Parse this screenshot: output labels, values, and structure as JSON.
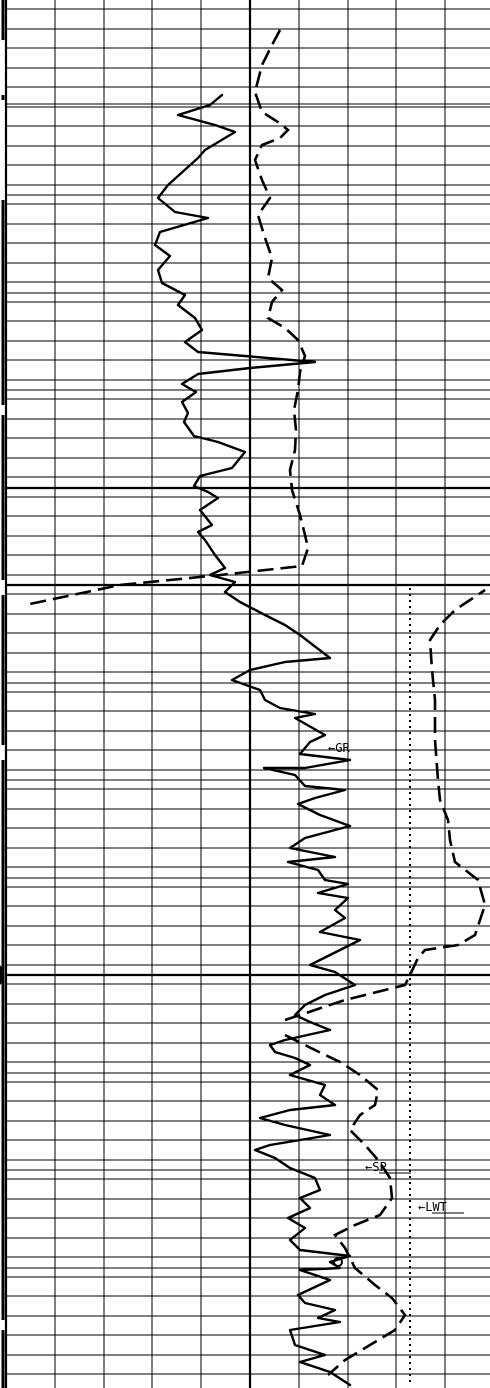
{
  "colors": {
    "background": "#ffffff",
    "ink": "#000000"
  },
  "labels": {
    "gr": "←GR",
    "sp": "←SP",
    "lwt": "←LWT"
  },
  "chart_data": {
    "type": "line",
    "title": "",
    "xlabel": "",
    "ylabel": "",
    "grid": true,
    "legend": "none",
    "depth_range": [
      0,
      1388
    ],
    "track_range": [
      0,
      10
    ],
    "series": [
      {
        "key": "gr",
        "style": "solid",
        "points": [
          [
            222,
            95
          ],
          [
            210,
            105
          ],
          [
            178,
            115
          ],
          [
            215,
            125
          ],
          [
            235,
            132
          ],
          [
            205,
            150
          ],
          [
            198,
            158
          ],
          [
            168,
            185
          ],
          [
            158,
            198
          ],
          [
            175,
            212
          ],
          [
            208,
            218
          ],
          [
            160,
            232
          ],
          [
            155,
            245
          ],
          [
            170,
            256
          ],
          [
            158,
            270
          ],
          [
            162,
            283
          ],
          [
            185,
            295
          ],
          [
            178,
            305
          ],
          [
            195,
            318
          ],
          [
            202,
            330
          ],
          [
            185,
            342
          ],
          [
            198,
            352
          ],
          [
            315,
            362
          ],
          [
            250,
            368
          ],
          [
            198,
            374
          ],
          [
            182,
            384
          ],
          [
            196,
            392
          ],
          [
            182,
            402
          ],
          [
            188,
            413
          ],
          [
            184,
            422
          ],
          [
            194,
            436
          ],
          [
            218,
            442
          ],
          [
            245,
            452
          ],
          [
            232,
            468
          ],
          [
            200,
            476
          ],
          [
            194,
            486
          ],
          [
            208,
            492
          ],
          [
            218,
            498
          ],
          [
            200,
            510
          ],
          [
            212,
            525
          ],
          [
            198,
            532
          ],
          [
            205,
            540
          ],
          [
            215,
            555
          ],
          [
            225,
            568
          ],
          [
            210,
            575
          ],
          [
            235,
            582
          ],
          [
            225,
            592
          ],
          [
            240,
            602
          ],
          [
            265,
            615
          ],
          [
            285,
            625
          ],
          [
            300,
            635
          ],
          [
            330,
            658
          ],
          [
            285,
            662
          ],
          [
            250,
            670
          ],
          [
            232,
            680
          ],
          [
            260,
            690
          ],
          [
            265,
            700
          ],
          [
            280,
            708
          ],
          [
            315,
            714
          ],
          [
            295,
            718
          ],
          [
            325,
            735
          ],
          [
            310,
            742
          ],
          [
            300,
            754
          ],
          [
            350,
            760
          ],
          [
            305,
            768
          ],
          [
            264,
            768
          ],
          [
            295,
            775
          ],
          [
            305,
            786
          ],
          [
            345,
            790
          ],
          [
            315,
            798
          ],
          [
            298,
            804
          ],
          [
            320,
            815
          ],
          [
            350,
            826
          ],
          [
            305,
            838
          ],
          [
            290,
            848
          ],
          [
            335,
            857
          ],
          [
            288,
            862
          ],
          [
            318,
            870
          ],
          [
            325,
            880
          ],
          [
            348,
            884
          ],
          [
            318,
            893
          ],
          [
            348,
            898
          ],
          [
            335,
            910
          ],
          [
            345,
            918
          ],
          [
            320,
            932
          ],
          [
            360,
            940
          ],
          [
            330,
            955
          ],
          [
            310,
            965
          ],
          [
            335,
            972
          ],
          [
            355,
            985
          ],
          [
            325,
            995
          ],
          [
            305,
            1005
          ],
          [
            295,
            1015
          ],
          [
            310,
            1022
          ],
          [
            330,
            1030
          ],
          [
            285,
            1040
          ],
          [
            270,
            1045
          ],
          [
            275,
            1052
          ],
          [
            295,
            1058
          ],
          [
            310,
            1065
          ],
          [
            290,
            1075
          ],
          [
            325,
            1085
          ],
          [
            320,
            1095
          ],
          [
            335,
            1105
          ],
          [
            290,
            1110
          ],
          [
            260,
            1118
          ],
          [
            285,
            1125
          ],
          [
            330,
            1135
          ],
          [
            270,
            1145
          ],
          [
            255,
            1150
          ],
          [
            275,
            1158
          ],
          [
            290,
            1168
          ],
          [
            315,
            1178
          ],
          [
            320,
            1190
          ],
          [
            300,
            1198
          ],
          [
            310,
            1208
          ],
          [
            288,
            1218
          ],
          [
            305,
            1228
          ],
          [
            290,
            1240
          ],
          [
            300,
            1250
          ],
          [
            350,
            1256
          ],
          [
            330,
            1262
          ],
          [
            340,
            1268
          ],
          [
            300,
            1270
          ],
          [
            330,
            1280
          ],
          [
            298,
            1295
          ],
          [
            305,
            1303
          ],
          [
            335,
            1310
          ],
          [
            318,
            1318
          ],
          [
            340,
            1322
          ],
          [
            290,
            1330
          ],
          [
            295,
            1345
          ],
          [
            325,
            1355
          ],
          [
            300,
            1362
          ],
          [
            330,
            1372
          ],
          [
            350,
            1385
          ]
        ]
      },
      {
        "key": "sp",
        "style": "dashed",
        "points": [
          [
            280,
            30
          ],
          [
            272,
            45
          ],
          [
            262,
            65
          ],
          [
            255,
            92
          ],
          [
            262,
            112
          ],
          [
            278,
            122
          ],
          [
            288,
            130
          ],
          [
            280,
            138
          ],
          [
            262,
            145
          ],
          [
            255,
            160
          ],
          [
            262,
            180
          ],
          [
            270,
            198
          ],
          [
            258,
            215
          ],
          [
            264,
            235
          ],
          [
            272,
            258
          ],
          [
            268,
            278
          ],
          [
            282,
            290
          ],
          [
            272,
            302
          ],
          [
            268,
            318
          ],
          [
            285,
            328
          ],
          [
            298,
            340
          ],
          [
            305,
            356
          ],
          [
            300,
            372
          ],
          [
            298,
            390
          ],
          [
            294,
            410
          ],
          [
            296,
            430
          ],
          [
            295,
            450
          ],
          [
            290,
            470
          ],
          [
            292,
            490
          ],
          [
            300,
            515
          ],
          [
            305,
            535
          ],
          [
            308,
            548
          ],
          [
            302,
            566
          ],
          [
            220,
            575
          ],
          [
            120,
            585
          ],
          [
            25,
            605
          ]
        ]
      },
      {
        "key": "sp",
        "style": "dashed",
        "points": [
          [
            285,
            1020
          ],
          [
            345,
            1000
          ],
          [
            385,
            990
          ],
          [
            405,
            985
          ],
          [
            410,
            975
          ],
          [
            418,
            958
          ],
          [
            425,
            950
          ],
          [
            458,
            945
          ],
          [
            475,
            935
          ],
          [
            485,
            905
          ],
          [
            478,
            880
          ],
          [
            455,
            862
          ],
          [
            450,
            840
          ],
          [
            448,
            820
          ],
          [
            440,
            800
          ],
          [
            438,
            780
          ],
          [
            435,
            740
          ],
          [
            435,
            700
          ],
          [
            432,
            670
          ],
          [
            430,
            640
          ],
          [
            440,
            625
          ],
          [
            455,
            610
          ],
          [
            470,
            600
          ],
          [
            485,
            590
          ]
        ]
      },
      {
        "key": "sp",
        "style": "dashed",
        "points": [
          [
            285,
            1035
          ],
          [
            315,
            1050
          ],
          [
            340,
            1062
          ],
          [
            360,
            1075
          ],
          [
            378,
            1090
          ],
          [
            375,
            1105
          ],
          [
            360,
            1115
          ],
          [
            350,
            1130
          ],
          [
            365,
            1145
          ],
          [
            378,
            1160
          ],
          [
            390,
            1178
          ],
          [
            392,
            1198
          ],
          [
            380,
            1215
          ],
          [
            355,
            1225
          ],
          [
            335,
            1235
          ],
          [
            345,
            1248
          ],
          [
            355,
            1268
          ],
          [
            375,
            1285
          ],
          [
            392,
            1298
          ],
          [
            405,
            1315
          ],
          [
            395,
            1330
          ],
          [
            370,
            1345
          ],
          [
            345,
            1360
          ],
          [
            328,
            1375
          ]
        ]
      },
      {
        "key": "lwt",
        "style": "dotted",
        "points": [
          [
            410,
            588
          ],
          [
            410,
            1385
          ]
        ]
      }
    ],
    "annotations": [
      {
        "label_key": "gr",
        "at": [
          328,
          748
        ]
      },
      {
        "label_key": "sp",
        "at": [
          365,
          1167
        ]
      },
      {
        "label_key": "lwt",
        "at": [
          418,
          1207
        ]
      }
    ]
  }
}
